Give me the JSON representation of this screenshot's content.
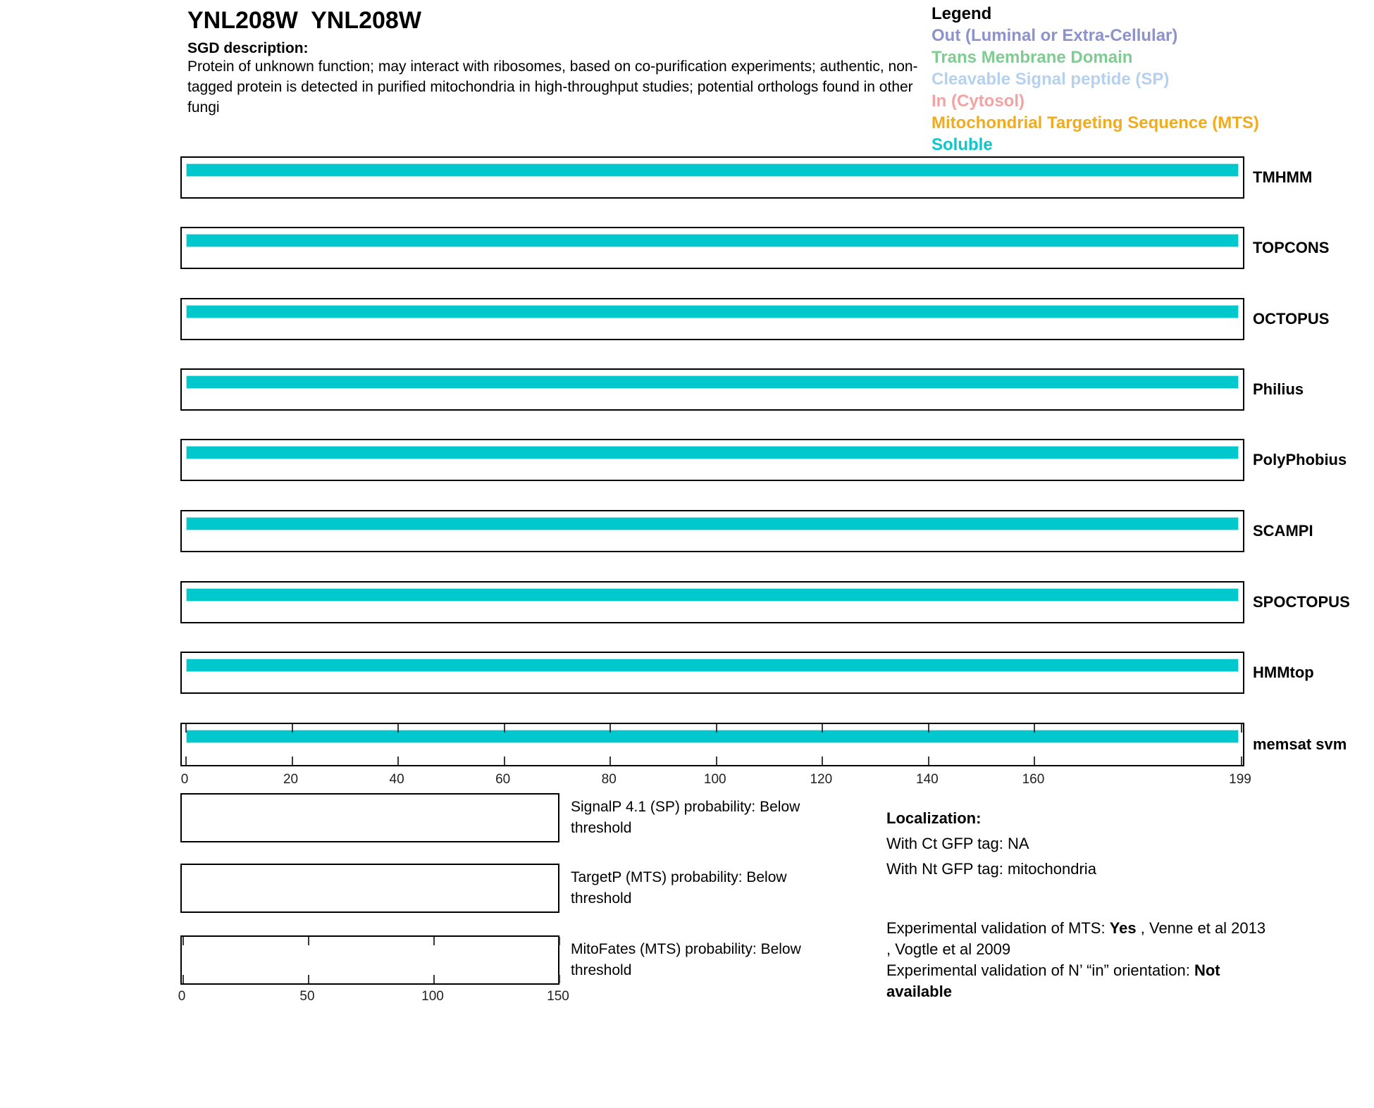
{
  "page": {
    "title": "YNL208W  YNL208W",
    "sgd_label": "SGD description:",
    "sgd_description": "Protein of unknown function; may interact with ribosomes, based on co-purification experiments; authentic, non-tagged protein is detected in purified mitochondria in high-throughput studies; potential orthologs found in other fungi"
  },
  "legend": {
    "title": "Legend",
    "items": [
      {
        "label": "Out (Luminal or Extra-Cellular)",
        "color": "#8B92CC"
      },
      {
        "label": "Trans Membrane Domain",
        "color": "#7FCB92"
      },
      {
        "label": "Cleavable Signal peptide (SP)",
        "color": "#B5D1F0"
      },
      {
        "label": "In (Cytosol)",
        "color": "#F2A3A3"
      },
      {
        "label": "Mitochondrial Targeting Sequence (MTS)",
        "color": "#EFAC1E"
      },
      {
        "label": "Soluble",
        "color": "#0FC6CA"
      }
    ]
  },
  "tracks": [
    {
      "label": "TMHMM",
      "prediction": "Soluble"
    },
    {
      "label": "TOPCONS",
      "prediction": "Soluble"
    },
    {
      "label": "OCTOPUS",
      "prediction": "Soluble"
    },
    {
      "label": "Philius",
      "prediction": "Soluble"
    },
    {
      "label": "PolyPhobius",
      "prediction": "Soluble"
    },
    {
      "label": "SCAMPI",
      "prediction": "Soluble"
    },
    {
      "label": "SPOCTOPUS",
      "prediction": "Soluble"
    },
    {
      "label": "HMMtop",
      "prediction": "Soluble"
    },
    {
      "label": "memsat svm",
      "prediction": "Soluble"
    }
  ],
  "main_axis": {
    "ticks": [
      0,
      20,
      40,
      60,
      80,
      100,
      120,
      140,
      160,
      199
    ],
    "max": 199
  },
  "sub_plots": [
    {
      "label": "SignalP 4.1 (SP) probability: Below threshold"
    },
    {
      "label": "TargetP (MTS) probability: Below threshold"
    },
    {
      "label": "MitoFates (MTS) probability: Below threshold"
    }
  ],
  "mito_axis": {
    "ticks": [
      0,
      50,
      100,
      150
    ],
    "max": 150
  },
  "localization": {
    "heading": "Localization:",
    "ct": "With Ct GFP tag: NA",
    "nt": "With Nt GFP tag: mitochondria"
  },
  "validation": {
    "mts_prefix": "Experimental validation of MTS: ",
    "mts_value": "Yes",
    "mts_refs_1": " , Venne et al 2013",
    "mts_refs_2": ", Vogtle et al 2009",
    "orientation_prefix": "Experimental validation of N’ “in” orientation: ",
    "orientation_value_1": "Not",
    "orientation_value_2": "available"
  },
  "colors": {
    "soluble_bar": "#00C8CC",
    "box_border": "#000000",
    "tick": "#3A3A3A"
  },
  "chart_data": {
    "type": "bar",
    "title": "YNL208W  YNL208W",
    "xlim": [
      0,
      199
    ],
    "xticks": [
      0,
      20,
      40,
      60,
      80,
      100,
      120,
      140,
      160,
      199
    ],
    "grid": false,
    "legend_position": "top-right",
    "legend_entries": [
      "Out (Luminal or Extra-Cellular)",
      "Trans Membrane Domain",
      "Cleavable Signal peptide (SP)",
      "In (Cytosol)",
      "Mitochondrial Targeting Sequence (MTS)",
      "Soluble"
    ],
    "tracks": [
      {
        "name": "TMHMM",
        "segments": [
          {
            "class": "Soluble",
            "start": 0,
            "end": 199
          }
        ]
      },
      {
        "name": "TOPCONS",
        "segments": [
          {
            "class": "Soluble",
            "start": 0,
            "end": 199
          }
        ]
      },
      {
        "name": "OCTOPUS",
        "segments": [
          {
            "class": "Soluble",
            "start": 0,
            "end": 199
          }
        ]
      },
      {
        "name": "Philius",
        "segments": [
          {
            "class": "Soluble",
            "start": 0,
            "end": 199
          }
        ]
      },
      {
        "name": "PolyPhobius",
        "segments": [
          {
            "class": "Soluble",
            "start": 0,
            "end": 199
          }
        ]
      },
      {
        "name": "SCAMPI",
        "segments": [
          {
            "class": "Soluble",
            "start": 0,
            "end": 199
          }
        ]
      },
      {
        "name": "SPOCTOPUS",
        "segments": [
          {
            "class": "Soluble",
            "start": 0,
            "end": 199
          }
        ]
      },
      {
        "name": "HMMtop",
        "segments": [
          {
            "class": "Soluble",
            "start": 0,
            "end": 199
          }
        ]
      },
      {
        "name": "memsat svm",
        "segments": [
          {
            "class": "Soluble",
            "start": 0,
            "end": 199
          }
        ]
      }
    ],
    "probability_plots": [
      {
        "name": "SignalP 4.1 (SP)",
        "status": "Below threshold",
        "values": []
      },
      {
        "name": "TargetP (MTS)",
        "status": "Below threshold",
        "values": []
      },
      {
        "name": "MitoFates (MTS)",
        "status": "Below threshold",
        "values": [],
        "xlim": [
          0,
          150
        ],
        "xticks": [
          0,
          50,
          100,
          150
        ]
      }
    ]
  }
}
